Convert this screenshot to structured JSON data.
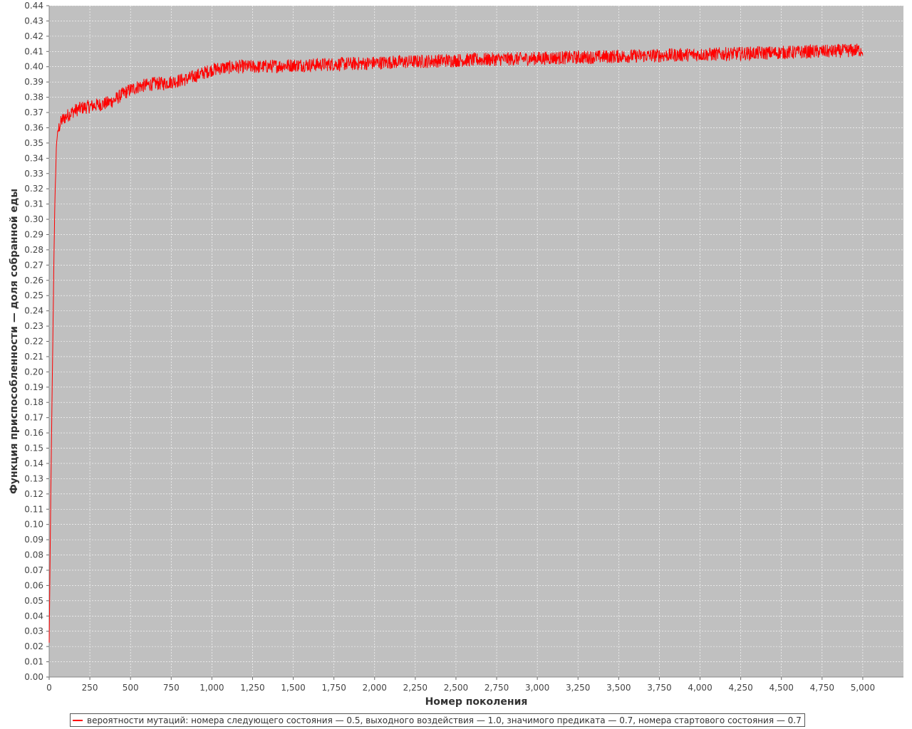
{
  "chart_data": {
    "type": "line",
    "title": "",
    "xlabel": "Номер поколения",
    "ylabel": "Функция приспособленности — доля собранной еды",
    "xlim": [
      0,
      5250
    ],
    "ylim": [
      0.0,
      0.44
    ],
    "x_ticks": [
      "0",
      "250",
      "500",
      "750",
      "1,000",
      "1,250",
      "1,500",
      "1,750",
      "2,000",
      "2,250",
      "2,500",
      "2,750",
      "3,000",
      "3,250",
      "3,500",
      "3,750",
      "4,000",
      "4,250",
      "4,500",
      "4,750",
      "5,000"
    ],
    "y_ticks": [
      "0.00",
      "0.01",
      "0.02",
      "0.03",
      "0.04",
      "0.05",
      "0.06",
      "0.07",
      "0.08",
      "0.09",
      "0.10",
      "0.11",
      "0.12",
      "0.13",
      "0.14",
      "0.15",
      "0.16",
      "0.17",
      "0.18",
      "0.19",
      "0.20",
      "0.21",
      "0.22",
      "0.23",
      "0.24",
      "0.25",
      "0.26",
      "0.27",
      "0.28",
      "0.29",
      "0.30",
      "0.31",
      "0.32",
      "0.33",
      "0.34",
      "0.35",
      "0.36",
      "0.37",
      "0.38",
      "0.39",
      "0.40",
      "0.41",
      "0.42",
      "0.43",
      "0.44"
    ],
    "grid": true,
    "legend_position": "bottom",
    "colors": {
      "plot_background": "#c0c0c0",
      "grid": "#ffffff",
      "series": "#ff0000"
    },
    "series": [
      {
        "name": "вероятности мутаций: номера следующего состояния — 0.5, выходного воздействия — 1.0, значимого предиката — 0.7, номера стартового состояния — 0.7",
        "x": [
          0,
          5,
          10,
          15,
          20,
          25,
          30,
          35,
          40,
          45,
          50,
          60,
          70,
          80,
          100,
          125,
          150,
          200,
          250,
          300,
          350,
          400,
          450,
          500,
          550,
          600,
          650,
          700,
          750,
          800,
          850,
          900,
          950,
          1000,
          1050,
          1100,
          1150,
          1200,
          1250,
          1300,
          1400,
          1500,
          1600,
          1700,
          1800,
          1900,
          2000,
          2100,
          2200,
          2300,
          2400,
          2500,
          2600,
          2700,
          2800,
          2900,
          3000,
          3100,
          3200,
          3300,
          3400,
          3500,
          3600,
          3700,
          3800,
          3900,
          4000,
          4100,
          4200,
          4300,
          4400,
          4500,
          4600,
          4700,
          4800,
          4900,
          5000
        ],
        "y": [
          0.022,
          0.07,
          0.12,
          0.16,
          0.2,
          0.24,
          0.28,
          0.31,
          0.33,
          0.35,
          0.355,
          0.36,
          0.363,
          0.365,
          0.367,
          0.369,
          0.371,
          0.373,
          0.374,
          0.375,
          0.376,
          0.378,
          0.382,
          0.385,
          0.387,
          0.388,
          0.389,
          0.389,
          0.39,
          0.391,
          0.392,
          0.394,
          0.396,
          0.398,
          0.399,
          0.3995,
          0.4,
          0.4,
          0.4,
          0.4,
          0.4005,
          0.401,
          0.4012,
          0.4015,
          0.4018,
          0.402,
          0.4025,
          0.403,
          0.4032,
          0.4035,
          0.404,
          0.4042,
          0.4045,
          0.4048,
          0.405,
          0.4052,
          0.4055,
          0.4058,
          0.406,
          0.4062,
          0.4065,
          0.4068,
          0.407,
          0.4072,
          0.4075,
          0.4078,
          0.408,
          0.4082,
          0.4085,
          0.4088,
          0.409,
          0.4093,
          0.4095,
          0.41,
          0.41,
          0.4105,
          0.411
        ],
        "noise_amplitude": 0.0045
      }
    ]
  }
}
